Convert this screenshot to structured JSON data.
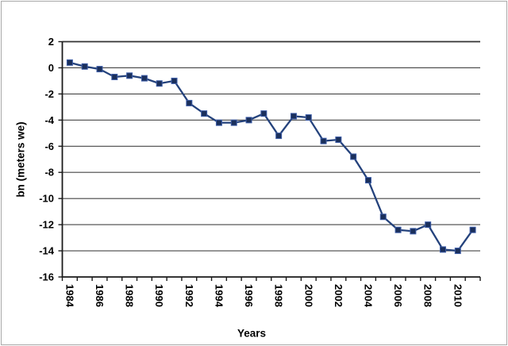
{
  "chart_data": {
    "type": "line",
    "title": "",
    "xlabel": "Years",
    "ylabel": "bn (meters we)",
    "x": [
      1984,
      1985,
      1986,
      1987,
      1988,
      1989,
      1990,
      1991,
      1992,
      1993,
      1994,
      1995,
      1996,
      1997,
      1998,
      1999,
      2000,
      2001,
      2002,
      2003,
      2004,
      2005,
      2006,
      2007,
      2008,
      2009,
      2010,
      2011
    ],
    "values": [
      0.4,
      0.1,
      -0.1,
      -0.7,
      -0.6,
      -0.8,
      -1.2,
      -1.0,
      -2.7,
      -3.5,
      -4.2,
      -4.2,
      -4.0,
      -3.5,
      -5.2,
      -3.7,
      -3.8,
      -5.6,
      -5.5,
      -6.8,
      -8.6,
      -11.4,
      -12.4,
      -12.5,
      -12.0,
      -13.9,
      -14.0,
      -12.4
    ],
    "ylim": [
      -16,
      2
    ],
    "ytick_step": 2,
    "ytick_labels": [
      "2",
      "0",
      "-2",
      "-4",
      "-6",
      "-8",
      "-10",
      "-12",
      "-14",
      "-16"
    ],
    "xtick_labels": [
      "1984",
      "1986",
      "1988",
      "1990",
      "1992",
      "1994",
      "1996",
      "1998",
      "2000",
      "2002",
      "2004",
      "2006",
      "2008",
      "2010"
    ],
    "x_label_every": 2,
    "grid": true,
    "legend_position": "none",
    "marker": "square",
    "series_color": "#24427C",
    "marker_fill": "#1A2F5B",
    "marker_edge_color": "#3E5EA9",
    "gridline_color": "#454545",
    "top_border_color": "#333333",
    "axis_color": "#1A1A1A",
    "text_color": "#000000",
    "background": "#FFFFFF",
    "image_border_color": "#A9A9A9"
  }
}
